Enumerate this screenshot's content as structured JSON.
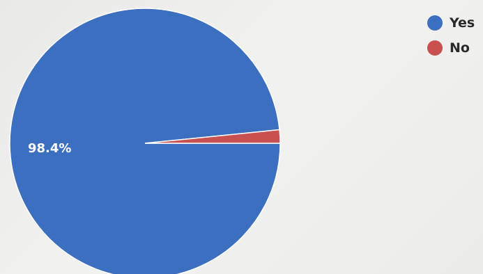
{
  "chart_data": {
    "type": "pie",
    "title": "",
    "legend_position": "top-right",
    "slices": [
      {
        "label": "Yes",
        "value": 98.4,
        "color": "#3c6fc0",
        "data_label": "98.4%"
      },
      {
        "label": "No",
        "value": 1.6,
        "color": "#c95050",
        "data_label": ""
      }
    ]
  }
}
